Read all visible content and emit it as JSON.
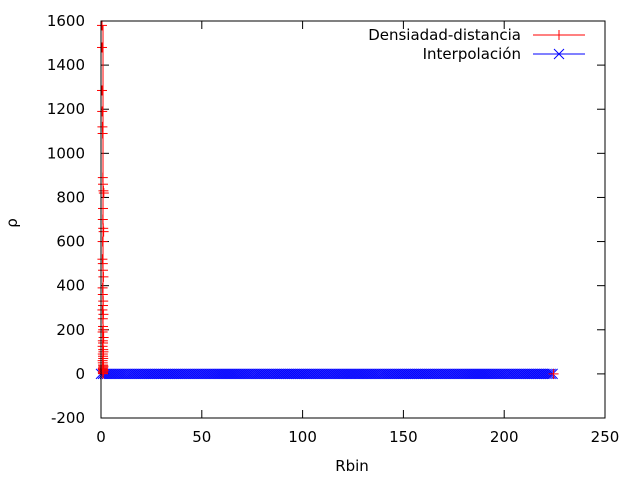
{
  "chart_data": {
    "type": "scatter",
    "xlabel": "Rbin",
    "ylabel": "ρ",
    "xlim": [
      0,
      250
    ],
    "ylim": [
      -200,
      1600
    ],
    "x_ticks": [
      0,
      50,
      100,
      150,
      200,
      250
    ],
    "y_ticks": [
      -200,
      0,
      200,
      400,
      600,
      800,
      1000,
      1200,
      1400,
      1600
    ],
    "x_tick_labels": [
      "0",
      "50",
      "100",
      "150",
      "200",
      "250"
    ],
    "y_tick_labels": [
      "-200",
      "0",
      "200",
      "400",
      "600",
      "800",
      "1000",
      "1200",
      "1400",
      "1600"
    ],
    "grid": false,
    "legend_position": "top-right",
    "series": [
      {
        "name": "Densiadad-distancia",
        "color": "#ff0000",
        "marker": "plus",
        "errorbars": true,
        "x": [
          0.5,
          0.5,
          0.5,
          0.6,
          0.7,
          0.8,
          0.9,
          1.0,
          1.2,
          1.4,
          1.0,
          0.9,
          1.1,
          1.3,
          0.8,
          0.7,
          0.9,
          1.0,
          1.2,
          0.8,
          0.9,
          1.1,
          1.0,
          0.7,
          1.2,
          0.9,
          1.0,
          1.1,
          0.8,
          1.3,
          0.9,
          1.0,
          0.8,
          1.1,
          1.2,
          0.9,
          1.0,
          1.1,
          0.8,
          0.9,
          1.0,
          1.2,
          1.1,
          0.9,
          1.0,
          1.3,
          1.0,
          0.9,
          1.1,
          1.0,
          224.5
        ],
        "y": [
          1580,
          1480,
          1285,
          1190,
          1120,
          1090,
          890,
          860,
          830,
          820,
          750,
          700,
          660,
          645,
          600,
          520,
          500,
          470,
          440,
          390,
          360,
          330,
          310,
          290,
          270,
          250,
          215,
          200,
          190,
          165,
          150,
          140,
          125,
          110,
          100,
          90,
          80,
          70,
          60,
          50,
          40,
          35,
          30,
          25,
          20,
          15,
          10,
          5,
          3,
          1,
          0
        ]
      },
      {
        "name": "Interpolación",
        "color": "#0000ff",
        "marker": "cross",
        "x_start": 0,
        "x_end": 224,
        "x_step": 1,
        "y": 0
      }
    ]
  }
}
